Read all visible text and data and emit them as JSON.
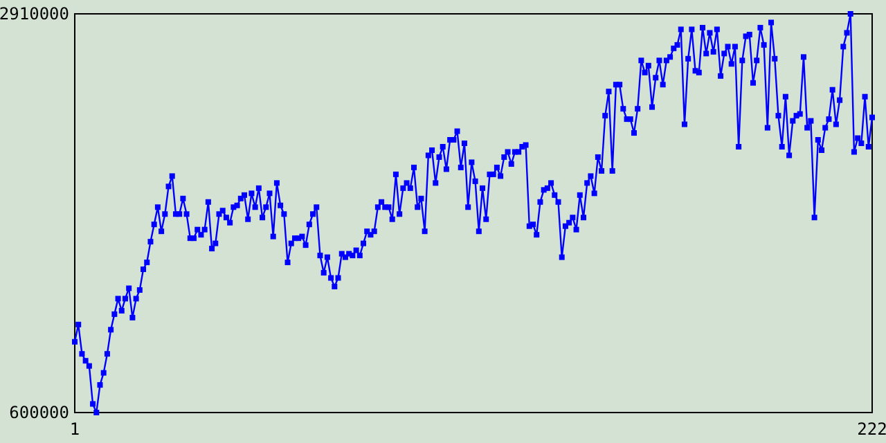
{
  "chart_data": {
    "type": "line",
    "marker": "square",
    "line_style": "solid",
    "xlim": [
      1,
      222
    ],
    "xticks": [
      1,
      222
    ],
    "ylim": [
      600000,
      2910000
    ],
    "yticks": [
      600000,
      2910000
    ],
    "series": [
      {
        "color": "#0000ff",
        "x": [
          1,
          2,
          3,
          4,
          5,
          6,
          7,
          8,
          9,
          10,
          11,
          12,
          13,
          14,
          15,
          16,
          17,
          18,
          19,
          20,
          21,
          22,
          23,
          24,
          25,
          26,
          27,
          28,
          29,
          30,
          31,
          32,
          33,
          34,
          35,
          36,
          37,
          38,
          39,
          40,
          41,
          42,
          43,
          44,
          45,
          46,
          47,
          48,
          49,
          50,
          51,
          52,
          53,
          54,
          55,
          56,
          57,
          58,
          59,
          60,
          61,
          62,
          63,
          64,
          65,
          66,
          67,
          68,
          69,
          70,
          71,
          72,
          73,
          74,
          75,
          76,
          77,
          78,
          79,
          80,
          81,
          82,
          83,
          84,
          85,
          86,
          87,
          88,
          89,
          90,
          91,
          92,
          93,
          94,
          95,
          96,
          97,
          98,
          99,
          100,
          101,
          102,
          103,
          104,
          105,
          106,
          107,
          108,
          109,
          110,
          111,
          112,
          113,
          114,
          115,
          116,
          117,
          118,
          119,
          120,
          121,
          122,
          123,
          124,
          125,
          126,
          127,
          128,
          129,
          130,
          131,
          132,
          133,
          134,
          135,
          136,
          137,
          138,
          139,
          140,
          141,
          142,
          143,
          144,
          145,
          146,
          147,
          148,
          149,
          150,
          151,
          152,
          153,
          154,
          155,
          156,
          157,
          158,
          159,
          160,
          161,
          162,
          163,
          164,
          165,
          166,
          167,
          168,
          169,
          170,
          171,
          172,
          173,
          174,
          175,
          176,
          177,
          178,
          179,
          180,
          181,
          182,
          183,
          184,
          185,
          186,
          187,
          188,
          189,
          190,
          191,
          192,
          193,
          194,
          195,
          196,
          197,
          198,
          199,
          200,
          201,
          202,
          203,
          204,
          205,
          206,
          207,
          208,
          209,
          210,
          211,
          212,
          213,
          214,
          215,
          216,
          217,
          218,
          219,
          220,
          221,
          222
        ],
        "values": [
          1010000,
          1110000,
          940000,
          900000,
          870000,
          650000,
          600000,
          760000,
          830000,
          940000,
          1080000,
          1170000,
          1260000,
          1190000,
          1260000,
          1320000,
          1150000,
          1260000,
          1310000,
          1430000,
          1470000,
          1590000,
          1690000,
          1790000,
          1650000,
          1750000,
          1910000,
          1970000,
          1750000,
          1750000,
          1840000,
          1750000,
          1610000,
          1610000,
          1660000,
          1630000,
          1660000,
          1820000,
          1550000,
          1580000,
          1750000,
          1770000,
          1730000,
          1700000,
          1790000,
          1800000,
          1840000,
          1860000,
          1720000,
          1870000,
          1790000,
          1900000,
          1730000,
          1790000,
          1870000,
          1620000,
          1930000,
          1800000,
          1750000,
          1470000,
          1580000,
          1610000,
          1610000,
          1620000,
          1570000,
          1690000,
          1750000,
          1790000,
          1510000,
          1410000,
          1500000,
          1380000,
          1330000,
          1380000,
          1520000,
          1500000,
          1520000,
          1510000,
          1540000,
          1510000,
          1580000,
          1650000,
          1630000,
          1650000,
          1790000,
          1820000,
          1790000,
          1790000,
          1720000,
          1980000,
          1750000,
          1900000,
          1930000,
          1900000,
          2020000,
          1790000,
          1840000,
          1650000,
          2090000,
          2120000,
          1930000,
          2080000,
          2140000,
          2010000,
          2180000,
          2180000,
          2230000,
          2020000,
          2160000,
          1790000,
          2050000,
          1940000,
          1650000,
          1900000,
          1720000,
          1980000,
          1980000,
          2020000,
          1970000,
          2080000,
          2110000,
          2040000,
          2110000,
          2110000,
          2140000,
          2150000,
          1680000,
          1690000,
          1630000,
          1820000,
          1890000,
          1900000,
          1930000,
          1860000,
          1820000,
          1500000,
          1680000,
          1700000,
          1730000,
          1660000,
          1860000,
          1730000,
          1930000,
          1970000,
          1870000,
          2080000,
          2000000,
          2320000,
          2460000,
          2000000,
          2500000,
          2500000,
          2360000,
          2300000,
          2300000,
          2220000,
          2360000,
          2640000,
          2570000,
          2610000,
          2370000,
          2540000,
          2640000,
          2500000,
          2640000,
          2660000,
          2710000,
          2730000,
          2820000,
          2270000,
          2650000,
          2820000,
          2580000,
          2570000,
          2830000,
          2680000,
          2800000,
          2690000,
          2820000,
          2550000,
          2680000,
          2720000,
          2620000,
          2720000,
          2140000,
          2640000,
          2780000,
          2790000,
          2510000,
          2640000,
          2830000,
          2730000,
          2250000,
          2860000,
          2650000,
          2320000,
          2140000,
          2430000,
          2090000,
          2290000,
          2320000,
          2330000,
          2660000,
          2250000,
          2290000,
          1730000,
          2180000,
          2120000,
          2250000,
          2300000,
          2470000,
          2270000,
          2410000,
          2720000,
          2800000,
          2910000,
          2110000,
          2190000,
          2160000,
          2430000,
          2140000,
          2310000
        ]
      }
    ]
  }
}
